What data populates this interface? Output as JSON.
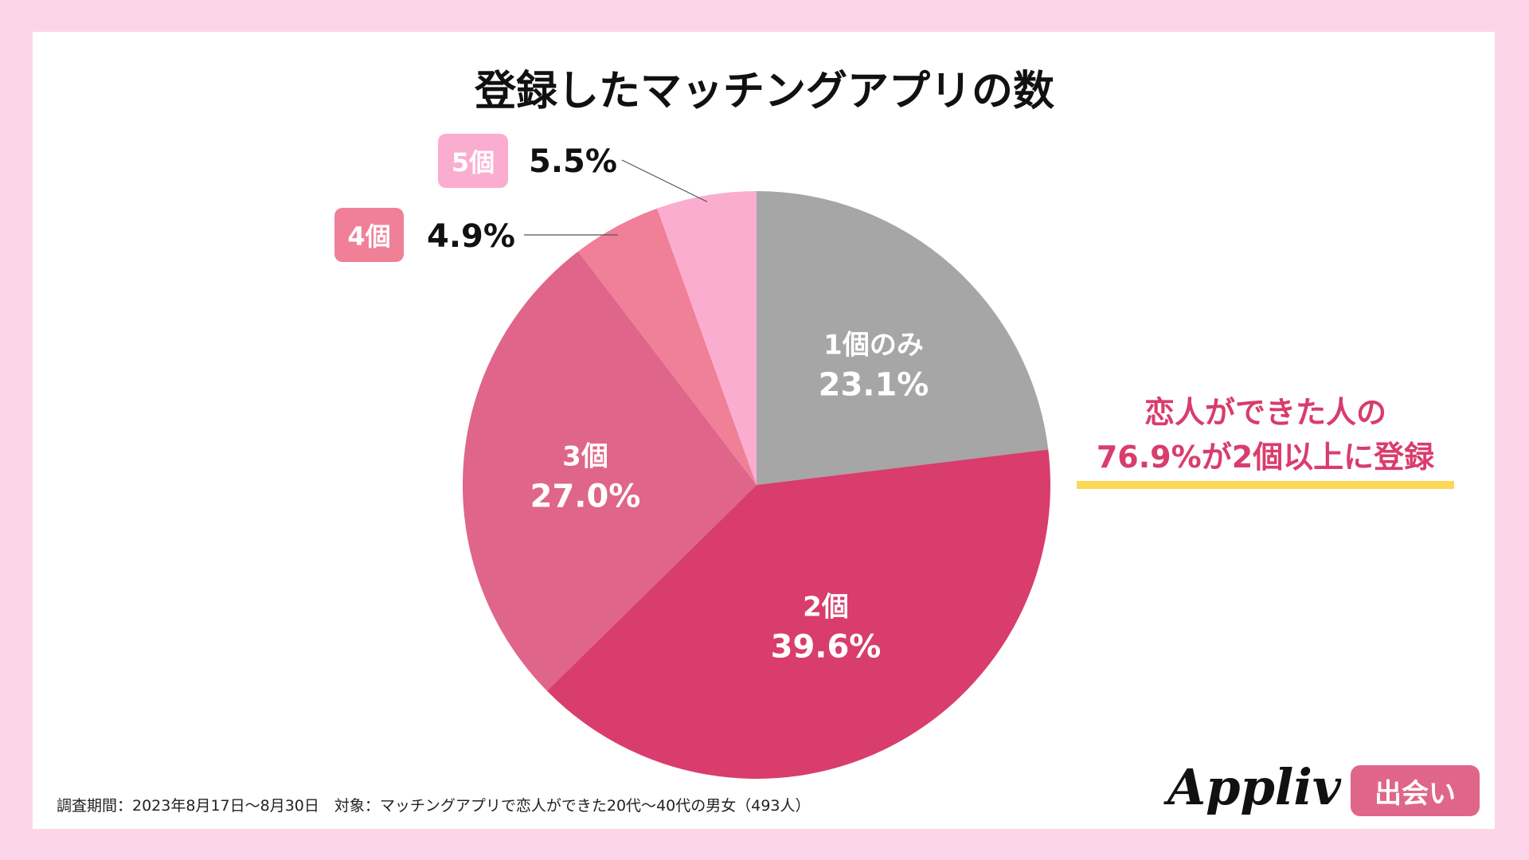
{
  "chart_data": {
    "type": "pie",
    "title": "登録したマッチングアプリの数",
    "start": "top",
    "direction": "clockwise",
    "slices": [
      {
        "label": "1個のみ",
        "value": 23.1,
        "display": "23.1%",
        "color": "#a6a6a6",
        "label_position": "inside"
      },
      {
        "label": "2個",
        "value": 39.6,
        "display": "39.6%",
        "color": "#d83d6d",
        "label_position": "inside"
      },
      {
        "label": "3個",
        "value": 27.0,
        "display": "27.0%",
        "color": "#e0658a",
        "label_position": "inside"
      },
      {
        "label": "4個",
        "value": 4.9,
        "display": "4.9%",
        "color": "#f07f98",
        "label_position": "outside"
      },
      {
        "label": "5個",
        "value": 5.5,
        "display": "5.5%",
        "color": "#fbadd0",
        "label_position": "outside"
      }
    ]
  },
  "annotation": {
    "line1": "恋人ができた人の",
    "line2": "76.9%が2個以上に登録",
    "color": "#d83d6d",
    "underline_color": "#fcd856"
  },
  "footer": "調査期間：2023年8月17日〜8月30日　対象：マッチングアプリで恋人ができた20代〜40代の男女（493人）",
  "logo": {
    "brand": "Appliv",
    "badge": "出会い"
  },
  "colors": {
    "background": "#fdd5e8",
    "panel": "#ffffff"
  }
}
